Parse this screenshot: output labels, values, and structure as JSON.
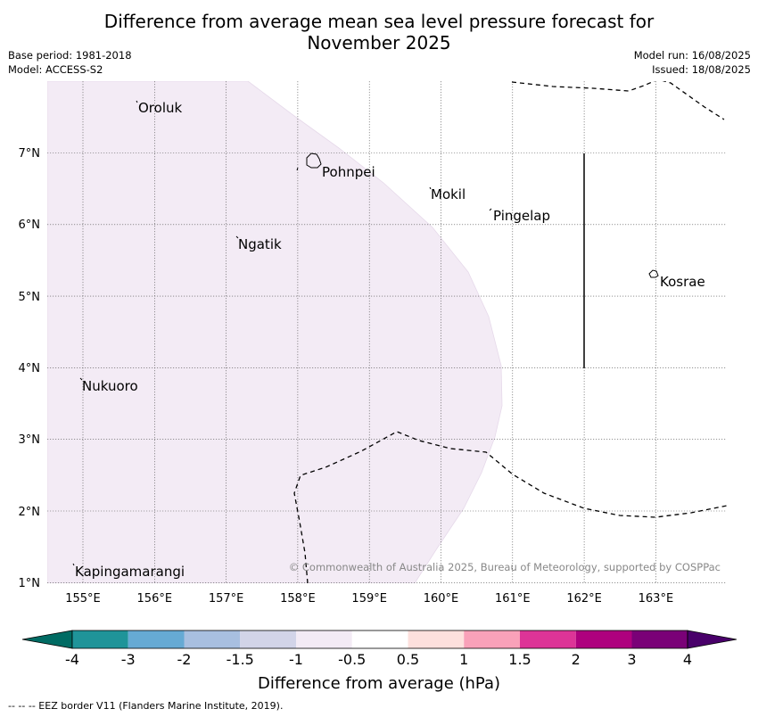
{
  "title_line1": "Difference from average mean sea level pressure forecast for",
  "title_line2": "November 2025",
  "meta": {
    "base_period": "Base period: 1981-2018",
    "model": "Model: ACCESS-S2",
    "model_run": "Model run: 16/08/2025",
    "issued": "Issued: 18/08/2025"
  },
  "map": {
    "lon_ticks": [
      "155°E",
      "156°E",
      "157°E",
      "158°E",
      "159°E",
      "160°E",
      "161°E",
      "162°E",
      "163°E"
    ],
    "lat_ticks": [
      "7°N",
      "6°N",
      "5°N",
      "4°N",
      "3°N",
      "2°N",
      "1°N"
    ],
    "places": [
      "Oroluk",
      "Pohnpei",
      "Mokil",
      "Pingelap",
      "Ngatik",
      "Kosrae",
      "Nukuoro",
      "Kapingamarangi"
    ],
    "copyright": "© Commonwealth of Australia 2025, Bureau of Meteorology, supported by COSPPac",
    "shaded_anomaly_range": "-1 to -0.5",
    "shade_color": "#f3ebf5"
  },
  "colorbar": {
    "label": "Difference from average (hPa)",
    "ticks": [
      "-4",
      "-3",
      "-2",
      "-1.5",
      "-1",
      "-0.5",
      "0.5",
      "1",
      "1.5",
      "2",
      "3",
      "4"
    ],
    "colors": [
      "#006b63",
      "#1f9499",
      "#66aad4",
      "#a8bfe0",
      "#d2d4e8",
      "#f3ebf5",
      "#ffffff",
      "#fde0dd",
      "#f9a1b9",
      "#dd3497",
      "#ae017e",
      "#7a0177",
      "#49006a"
    ]
  },
  "footer": "--  --  -- EEZ border V11 (Flanders Marine Institute, 2019)."
}
